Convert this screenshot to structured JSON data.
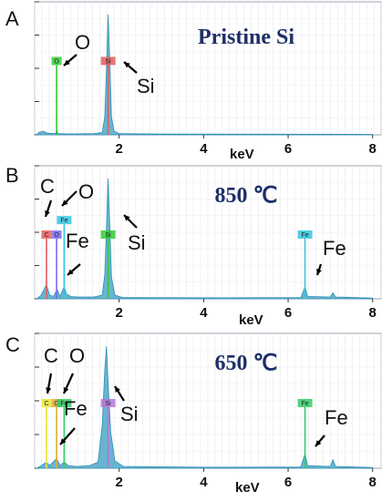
{
  "chart_data": [
    {
      "type": "area",
      "panel": "A",
      "title": "Pristine Si",
      "xlabel": "keV",
      "xticks": [
        "2",
        "4",
        "6",
        "8"
      ],
      "xlim": [
        0,
        8.2
      ],
      "ylim": [
        0,
        1
      ],
      "spectrum": [
        [
          0.05,
          0.0
        ],
        [
          0.1,
          0.02
        ],
        [
          0.2,
          0.03
        ],
        [
          0.3,
          0.015
        ],
        [
          0.5,
          0.01
        ],
        [
          0.52,
          0.05
        ],
        [
          0.55,
          0.01
        ],
        [
          0.7,
          0.008
        ],
        [
          1.0,
          0.008
        ],
        [
          1.4,
          0.01
        ],
        [
          1.6,
          0.02
        ],
        [
          1.66,
          0.15
        ],
        [
          1.7,
          0.55
        ],
        [
          1.74,
          1.0
        ],
        [
          1.78,
          0.6
        ],
        [
          1.82,
          0.15
        ],
        [
          1.88,
          0.03
        ],
        [
          2.0,
          0.01
        ],
        [
          3.0,
          0.006
        ],
        [
          5.0,
          0.005
        ],
        [
          8.0,
          0.004
        ]
      ],
      "peak_tags": [
        {
          "label": "O",
          "energy": 0.52,
          "color": "#33cc33",
          "height": 0.58
        },
        {
          "label": "Si",
          "energy": 1.74,
          "color": "#e65c5c",
          "height": 0.58
        }
      ],
      "peak_labels": [
        "O",
        "Si"
      ]
    },
    {
      "type": "area",
      "panel": "B",
      "title": "850 ℃",
      "xlabel": "keV",
      "xticks": [
        "2",
        "4",
        "6",
        "8"
      ],
      "xlim": [
        0,
        8.2
      ],
      "ylim": [
        0,
        1
      ],
      "spectrum": [
        [
          0.05,
          0.0
        ],
        [
          0.15,
          0.03
        ],
        [
          0.28,
          0.12
        ],
        [
          0.35,
          0.03
        ],
        [
          0.45,
          0.02
        ],
        [
          0.53,
          0.08
        ],
        [
          0.6,
          0.02
        ],
        [
          0.7,
          0.1
        ],
        [
          0.75,
          0.04
        ],
        [
          0.85,
          0.02
        ],
        [
          1.0,
          0.015
        ],
        [
          1.4,
          0.015
        ],
        [
          1.6,
          0.03
        ],
        [
          1.66,
          0.2
        ],
        [
          1.7,
          0.6
        ],
        [
          1.74,
          1.0
        ],
        [
          1.78,
          0.6
        ],
        [
          1.82,
          0.18
        ],
        [
          1.9,
          0.03
        ],
        [
          2.1,
          0.01
        ],
        [
          4.0,
          0.008
        ],
        [
          6.3,
          0.01
        ],
        [
          6.4,
          0.1
        ],
        [
          6.46,
          0.02
        ],
        [
          7.0,
          0.015
        ],
        [
          7.06,
          0.05
        ],
        [
          7.12,
          0.015
        ],
        [
          8.0,
          0.005
        ]
      ],
      "peak_tags": [
        {
          "label": "C",
          "energy": 0.28,
          "color": "#e65c5c",
          "height": 0.5
        },
        {
          "label": "O",
          "energy": 0.52,
          "color": "#7a6cf0",
          "height": 0.5
        },
        {
          "label": "Fe",
          "energy": 0.7,
          "color": "#33c6e0",
          "height": 0.62
        },
        {
          "label": "Si",
          "energy": 1.74,
          "color": "#33cc33",
          "height": 0.5
        },
        {
          "label": "Fe",
          "energy": 6.4,
          "color": "#33c6e0",
          "height": 0.5
        }
      ],
      "peak_labels": [
        "C",
        "O",
        "Fe",
        "Si",
        "Fe"
      ]
    },
    {
      "type": "area",
      "panel": "C",
      "title": "650 ℃",
      "xlabel": "keV",
      "xticks": [
        "2",
        "4",
        "6",
        "8"
      ],
      "xlim": [
        0,
        8.2
      ],
      "ylim": [
        0,
        1
      ],
      "spectrum": [
        [
          0.05,
          0.0
        ],
        [
          0.15,
          0.02
        ],
        [
          0.28,
          0.05
        ],
        [
          0.35,
          0.02
        ],
        [
          0.52,
          0.08
        ],
        [
          0.6,
          0.02
        ],
        [
          0.7,
          0.05
        ],
        [
          0.8,
          0.02
        ],
        [
          1.0,
          0.015
        ],
        [
          1.3,
          0.02
        ],
        [
          1.5,
          0.05
        ],
        [
          1.6,
          0.35
        ],
        [
          1.66,
          0.8
        ],
        [
          1.7,
          1.0
        ],
        [
          1.74,
          0.7
        ],
        [
          1.8,
          0.3
        ],
        [
          1.9,
          0.06
        ],
        [
          2.1,
          0.015
        ],
        [
          4.0,
          0.008
        ],
        [
          6.3,
          0.01
        ],
        [
          6.4,
          0.12
        ],
        [
          6.46,
          0.02
        ],
        [
          7.0,
          0.015
        ],
        [
          7.06,
          0.07
        ],
        [
          7.12,
          0.015
        ],
        [
          8.0,
          0.005
        ]
      ],
      "peak_tags": [
        {
          "label": "C",
          "energy": 0.28,
          "color": "#e6e633",
          "height": 0.5
        },
        {
          "label": "O",
          "energy": 0.52,
          "color": "#e6a833",
          "height": 0.5
        },
        {
          "label": "Fe",
          "energy": 0.7,
          "color": "#33cc66",
          "height": 0.5
        },
        {
          "label": "Si",
          "energy": 1.74,
          "color": "#b877d9",
          "height": 0.5
        },
        {
          "label": "Fe",
          "energy": 6.4,
          "color": "#33cc66",
          "height": 0.5
        }
      ],
      "peak_labels": [
        "C",
        "O",
        "Fe",
        "Si",
        "Fe"
      ]
    }
  ]
}
